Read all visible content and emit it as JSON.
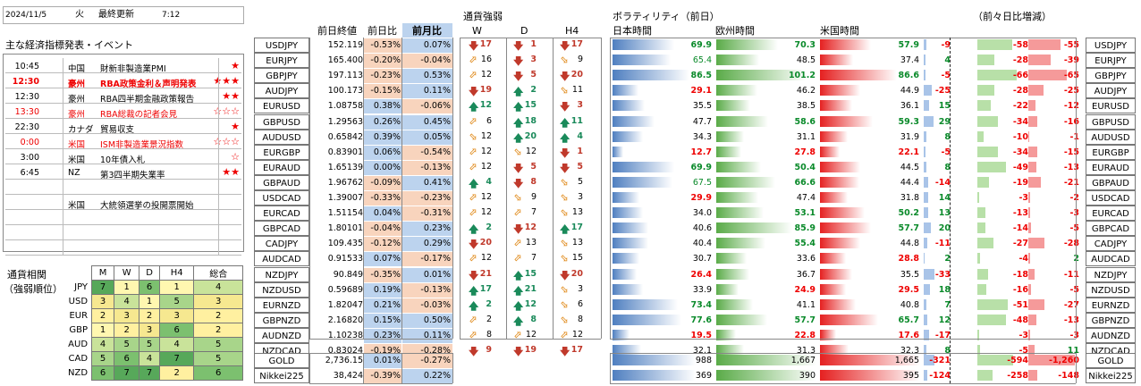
{
  "header": {
    "date": "2024/11/5",
    "weekday": "火",
    "update_label": "最終更新",
    "time": "7:12"
  },
  "events_title": "主な経済指標発表・イベント",
  "events": [
    {
      "time": "10:45",
      "country": "中国",
      "name": "財新非製造業PMI",
      "stars": "★",
      "style": "normal"
    },
    {
      "time": "12:30",
      "country": "豪州",
      "name": "RBA政策金利＆声明発表",
      "stars": "★★★",
      "style": "hl"
    },
    {
      "time": "12:30",
      "country": "豪州",
      "name": "RBA四半期金融政策報告",
      "stars": "★★",
      "style": "normal"
    },
    {
      "time": "13:30",
      "country": "豪州",
      "name": "RBA総裁の記者会見",
      "stars": "☆☆☆",
      "style": "red"
    },
    {
      "time": "22:30",
      "country": "カナダ",
      "name": "貿易収支",
      "stars": "★",
      "style": "normal"
    },
    {
      "time": "0:00",
      "country": "米国",
      "name": "ISM非製造業景況指数",
      "stars": "☆☆☆",
      "style": "red"
    },
    {
      "time": "3:00",
      "country": "米国",
      "name": "10年債入札",
      "stars": "☆",
      "style": "normal"
    },
    {
      "time": "6:45",
      "country": "NZ",
      "name": "第3四半期失業率",
      "stars": "★★",
      "style": "normal"
    },
    {
      "time": "",
      "country": "",
      "name": "",
      "stars": "",
      "style": "normal"
    },
    {
      "time": "",
      "country": "米国",
      "name": "大統領選挙の投開票開始",
      "stars": "",
      "style": "normal"
    },
    {
      "time": "",
      "country": "",
      "name": "",
      "stars": "",
      "style": "normal"
    },
    {
      "time": "",
      "country": "",
      "name": "",
      "stars": "",
      "style": "normal"
    },
    {
      "time": "",
      "country": "",
      "name": "",
      "stars": "",
      "style": "normal"
    }
  ],
  "strength": {
    "title1": "通貨相関",
    "title2": "（強弱順位）",
    "columns": [
      "M",
      "W",
      "D",
      "H4",
      "総合"
    ],
    "rows": [
      {
        "cur": "JPY",
        "vals": [
          "7",
          "1",
          "6",
          "1",
          "4"
        ]
      },
      {
        "cur": "USD",
        "vals": [
          "3",
          "4",
          "1",
          "5",
          "3"
        ]
      },
      {
        "cur": "EUR",
        "vals": [
          "2",
          "3",
          "2",
          "3",
          "2"
        ]
      },
      {
        "cur": "GBP",
        "vals": [
          "1",
          "2",
          "3",
          "6",
          "2"
        ]
      },
      {
        "cur": "AUD",
        "vals": [
          "4",
          "5",
          "5",
          "4",
          "5"
        ]
      },
      {
        "cur": "CAD",
        "vals": [
          "5",
          "6",
          "4",
          "7",
          "5"
        ]
      },
      {
        "cur": "NZD",
        "vals": [
          "6",
          "7",
          "7",
          "2",
          "6"
        ]
      }
    ]
  },
  "table_headers": {
    "close": "前日終値",
    "dchg": "前日比",
    "mchg": "前月比",
    "strength": "通貨強弱",
    "w": "W",
    "d": "D",
    "h4": "H4",
    "vol": "ボラティリティ（前日）",
    "jp": "日本時間",
    "eu": "欧州時間",
    "us": "米国時間",
    "vchg": "（前々日比増減）"
  },
  "pairs": [
    {
      "pair": "USDJPY",
      "close": "152.119",
      "dchg": "-0.53%",
      "mchg": "0.07%",
      "w": [
        "dn",
        "17"
      ],
      "d": [
        "dn",
        "1"
      ],
      "h4": [
        "dn",
        "17"
      ],
      "jp": "69.9",
      "eu": "70.3",
      "us": "57.9",
      "jpw": 0.62,
      "euw": 0.62,
      "usw": 0.51,
      "c1": "-9",
      "c2": "-58",
      "c3": "-55",
      "c1w": 0.12,
      "c2w": 0.7,
      "c3w": 0.65
    },
    {
      "pair": "EURJPY",
      "close": "165.400",
      "dchg": "-0.20%",
      "mchg": "-0.04%",
      "w": [
        "ne",
        "16"
      ],
      "d": [
        "dn",
        "3"
      ],
      "h4": [
        "se",
        "9"
      ],
      "jp": "65.4",
      "eu": "48.5",
      "us": "37.4",
      "jpw": 0.58,
      "euw": 0.43,
      "usw": 0.33,
      "c1": "4",
      "c2": "-28",
      "c3": "-39",
      "c1w": 0.06,
      "c2w": 0.34,
      "c3w": 0.46
    },
    {
      "pair": "GBPJPY",
      "close": "197.113",
      "dchg": "-0.23%",
      "mchg": "0.53%",
      "w": [
        "ne",
        "12"
      ],
      "d": [
        "dn",
        "5"
      ],
      "h4": [
        "dn",
        "20"
      ],
      "jp": "86.5",
      "eu": "101.2",
      "us": "86.6",
      "jpw": 0.77,
      "euw": 0.9,
      "usw": 0.77,
      "c1": "-5",
      "c2": "-66",
      "c3": "-65",
      "c1w": 0.07,
      "c2w": 0.8,
      "c3w": 0.78
    },
    {
      "pair": "AUDJPY",
      "close": "100.173",
      "dchg": "-0.15%",
      "mchg": "0.11%",
      "w": [
        "dn",
        "19"
      ],
      "d": [
        "up",
        "2"
      ],
      "h4": [
        "se",
        "11"
      ],
      "jp": "29.1",
      "eu": "46.2",
      "us": "44.9",
      "jpw": 0.26,
      "euw": 0.41,
      "usw": 0.4,
      "c1": "-25",
      "c2": "-28",
      "c3": "-25",
      "c1w": 0.33,
      "c2w": 0.34,
      "c3w": 0.3
    },
    {
      "pair": "EURUSD",
      "close": "1.08758",
      "dchg": "0.38%",
      "mchg": "-0.06%",
      "w": [
        "up",
        "12"
      ],
      "d": [
        "up",
        "15"
      ],
      "h4": [
        "dn",
        "3"
      ],
      "jp": "35.5",
      "eu": "38.5",
      "us": "36.1",
      "jpw": 0.32,
      "euw": 0.34,
      "usw": 0.32,
      "c1": "15",
      "c2": "-22",
      "c3": "-12",
      "c1w": 0.2,
      "c2w": 0.27,
      "c3w": 0.14
    },
    {
      "pair": "GBPUSD",
      "close": "1.29563",
      "dchg": "0.26%",
      "mchg": "0.45%",
      "w": [
        "ne",
        "6"
      ],
      "d": [
        "up",
        "18"
      ],
      "h4": [
        "up",
        "11"
      ],
      "jp": "47.7",
      "eu": "58.6",
      "us": "59.3",
      "jpw": 0.42,
      "euw": 0.52,
      "usw": 0.53,
      "c1": "29",
      "c2": "-34",
      "c3": "-16",
      "c1w": 0.38,
      "c2w": 0.41,
      "c3w": 0.19
    },
    {
      "pair": "AUDUSD",
      "close": "0.65842",
      "dchg": "0.39%",
      "mchg": "0.05%",
      "w": [
        "se",
        "12"
      ],
      "d": [
        "up",
        "20"
      ],
      "h4": [
        "up",
        "4"
      ],
      "jp": "34.3",
      "eu": "31.1",
      "us": "31.9",
      "jpw": 0.3,
      "euw": 0.28,
      "usw": 0.28,
      "c1": "8",
      "c2": "-10",
      "c3": "-1",
      "c1w": 0.11,
      "c2w": 0.12,
      "c3w": 0.02
    },
    {
      "pair": "EURGBP",
      "close": "0.83901",
      "dchg": "0.06%",
      "mchg": "-0.54%",
      "w": [
        "ne",
        "12"
      ],
      "d": [
        "se",
        "12"
      ],
      "h4": [
        "dn",
        "1"
      ],
      "jp": "12.7",
      "eu": "27.8",
      "us": "22.1",
      "jpw": 0.11,
      "euw": 0.25,
      "usw": 0.2,
      "c1": "-5",
      "c2": "-34",
      "c3": "-15",
      "c1w": 0.07,
      "c2w": 0.41,
      "c3w": 0.18
    },
    {
      "pair": "EURAUD",
      "close": "1.65139",
      "dchg": "0.00%",
      "mchg": "-0.13%",
      "w": [
        "ne",
        "12"
      ],
      "d": [
        "dn",
        "5"
      ],
      "h4": [
        "dn",
        "5"
      ],
      "jp": "69.9",
      "eu": "50.4",
      "us": "44.5",
      "jpw": 0.62,
      "euw": 0.45,
      "usw": 0.4,
      "c1": "8",
      "c2": "-49",
      "c3": "-13",
      "c1w": 0.11,
      "c2w": 0.59,
      "c3w": 0.16
    },
    {
      "pair": "GBPAUD",
      "close": "1.96762",
      "dchg": "-0.09%",
      "mchg": "0.41%",
      "w": [
        "up",
        "4"
      ],
      "d": [
        "dn",
        "8"
      ],
      "h4": [
        "se",
        "5"
      ],
      "jp": "67.5",
      "eu": "66.6",
      "us": "44.4",
      "jpw": 0.6,
      "euw": 0.59,
      "usw": 0.39,
      "c1": "-14",
      "c2": "-19",
      "c3": "-21",
      "c1w": 0.19,
      "c2w": 0.23,
      "c3w": 0.25
    },
    {
      "pair": "USDCAD",
      "close": "1.39007",
      "dchg": "-0.33%",
      "mchg": "-0.23%",
      "w": [
        "ne",
        "12"
      ],
      "d": [
        "se",
        "9"
      ],
      "h4": [
        "se",
        "3"
      ],
      "jp": "29.9",
      "eu": "47.4",
      "us": "31.8",
      "jpw": 0.27,
      "euw": 0.42,
      "usw": 0.28,
      "c1": "14",
      "c2": "-3",
      "c3": "-2",
      "c1w": 0.19,
      "c2w": 0.04,
      "c3w": 0.03
    },
    {
      "pair": "EURCAD",
      "close": "1.51154",
      "dchg": "0.04%",
      "mchg": "-0.31%",
      "w": [
        "ne",
        "12"
      ],
      "d": [
        "ne",
        "7"
      ],
      "h4": [
        "se",
        "13"
      ],
      "jp": "34.0",
      "eu": "53.1",
      "us": "50.2",
      "jpw": 0.3,
      "euw": 0.47,
      "usw": 0.45,
      "c1": "13",
      "c2": "-13",
      "c3": "-3",
      "c1w": 0.17,
      "c2w": 0.16,
      "c3w": 0.04
    },
    {
      "pair": "GBPCAD",
      "close": "1.80101",
      "dchg": "-0.04%",
      "mchg": "0.23%",
      "w": [
        "up",
        "2"
      ],
      "d": [
        "dn",
        "12"
      ],
      "h4": [
        "up",
        "17"
      ],
      "jp": "40.6",
      "eu": "85.9",
      "us": "57.7",
      "jpw": 0.36,
      "euw": 0.76,
      "usw": 0.51,
      "c1": "20",
      "c2": "-14",
      "c3": "-5",
      "c1w": 0.27,
      "c2w": 0.17,
      "c3w": 0.06
    },
    {
      "pair": "CADJPY",
      "close": "109.435",
      "dchg": "-0.12%",
      "mchg": "0.29%",
      "w": [
        "dn",
        "20"
      ],
      "d": [
        "ne",
        "13"
      ],
      "h4": [
        "se",
        "13"
      ],
      "jp": "40.4",
      "eu": "55.4",
      "us": "44.8",
      "jpw": 0.36,
      "euw": 0.49,
      "usw": 0.4,
      "c1": "-11",
      "c2": "-27",
      "c3": "-28",
      "c1w": 0.15,
      "c2w": 0.33,
      "c3w": 0.33
    },
    {
      "pair": "AUDCAD",
      "close": "0.91533",
      "dchg": "0.07%",
      "mchg": "-0.17%",
      "w": [
        "ne",
        "12"
      ],
      "d": [
        "ne",
        "7"
      ],
      "h4": [
        "se",
        "15"
      ],
      "jp": "30.7",
      "eu": "33.6",
      "us": "28.8",
      "jpw": 0.27,
      "euw": 0.3,
      "usw": 0.26,
      "c1": "2",
      "c2": "-4",
      "c3": "2",
      "c1w": 0.03,
      "c2w": 0.05,
      "c3w": 0.03
    },
    {
      "pair": "NZDJPY",
      "close": "90.849",
      "dchg": "-0.35%",
      "mchg": "0.01%",
      "w": [
        "dn",
        "21"
      ],
      "d": [
        "up",
        "15"
      ],
      "h4": [
        "dn",
        "20"
      ],
      "jp": "26.4",
      "eu": "36.7",
      "us": "35.5",
      "jpw": 0.24,
      "euw": 0.33,
      "usw": 0.32,
      "c1": "-33",
      "c2": "-18",
      "c3": "-11",
      "c1w": 0.44,
      "c2w": 0.22,
      "c3w": 0.13
    },
    {
      "pair": "NZDUSD",
      "close": "0.59689",
      "dchg": "0.19%",
      "mchg": "-0.13%",
      "w": [
        "up",
        "17"
      ],
      "d": [
        "up",
        "21"
      ],
      "h4": [
        "se",
        "3"
      ],
      "jp": "33.9",
      "eu": "24.9",
      "us": "29.5",
      "jpw": 0.3,
      "euw": 0.22,
      "usw": 0.26,
      "c1": "18",
      "c2": "-16",
      "c3": "-5",
      "c1w": 0.24,
      "c2w": 0.19,
      "c3w": 0.06
    },
    {
      "pair": "EURNZD",
      "close": "1.82047",
      "dchg": "0.21%",
      "mchg": "-0.03%",
      "w": [
        "up",
        "2"
      ],
      "d": [
        "up",
        "12"
      ],
      "h4": [
        "se",
        "6"
      ],
      "jp": "73.4",
      "eu": "41.1",
      "us": "40.8",
      "jpw": 0.65,
      "euw": 0.37,
      "usw": 0.36,
      "c1": "7",
      "c2": "-51",
      "c3": "-27",
      "c1w": 0.09,
      "c2w": 0.61,
      "c3w": 0.32
    },
    {
      "pair": "GBPNZD",
      "close": "2.16820",
      "dchg": "0.15%",
      "mchg": "0.50%",
      "w": [
        "ne",
        "2"
      ],
      "d": [
        "up",
        "8"
      ],
      "h4": [
        "se",
        "8"
      ],
      "jp": "77.6",
      "eu": "57.7",
      "us": "65.7",
      "jpw": 0.69,
      "euw": 0.51,
      "usw": 0.58,
      "c1": "12",
      "c2": "-48",
      "c3": "-13",
      "c1w": 0.16,
      "c2w": 0.58,
      "c3w": 0.16
    },
    {
      "pair": "AUDNZD",
      "close": "1.10238",
      "dchg": "0.23%",
      "mchg": "0.11%",
      "w": [
        "ne",
        "8"
      ],
      "d": [
        "ne",
        "12"
      ],
      "h4": [
        "ne",
        "12"
      ],
      "jp": "19.5",
      "eu": "22.8",
      "us": "17.6",
      "jpw": 0.17,
      "euw": 0.2,
      "usw": 0.16,
      "c1": "-17",
      "c2": "-3",
      "c3": "-3",
      "c1w": 0.23,
      "c2w": 0.04,
      "c3w": 0.04
    },
    {
      "pair": "NZDCAD",
      "close": "0.83024",
      "dchg": "-0.19%",
      "mchg": "-0.28%",
      "w": [
        "dn",
        "9"
      ],
      "d": [
        "dn",
        "19"
      ],
      "h4": [
        "dn",
        "17"
      ],
      "jp": "32.1",
      "eu": "31.3",
      "us": "32.3",
      "jpw": 0.29,
      "euw": 0.28,
      "usw": 0.29,
      "c1": "8",
      "c2": "-5",
      "c3": "11",
      "c1w": 0.11,
      "c2w": 0.06,
      "c3w": 0.13
    }
  ],
  "extras": [
    {
      "pair": "GOLD",
      "close": "2,736.15",
      "dchg": "0.01%",
      "mchg": "-0.27%",
      "jp": "988",
      "eu": "1,667",
      "us": "1,665",
      "c1": "-321",
      "c2": "-594",
      "c3": "-1,260",
      "c1w": 0.42,
      "c2w": 0.72,
      "c3w": 0.95
    },
    {
      "pair": "Nikkei225",
      "close": "38,424",
      "dchg": "-0.39%",
      "mchg": "0.22%",
      "jp": "369",
      "eu": "390",
      "us": "395",
      "c1": "-124",
      "c2": "-258",
      "c3": "-148",
      "c1w": 0.16,
      "c2w": 0.31,
      "c3w": 0.18
    }
  ]
}
